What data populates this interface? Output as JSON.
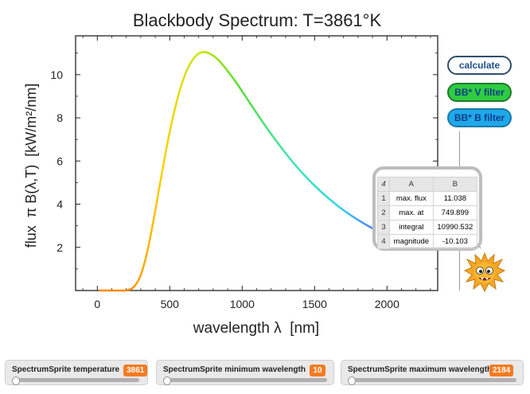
{
  "chart_data": {
    "type": "line",
    "title": "Blackbody Spectrum: T=3861°K",
    "xlabel": "wavelength λ  [nm]",
    "ylabel": "flux  π B(λ,T)  [kW/m²/nm]",
    "xlim": [
      -150,
      2350
    ],
    "ylim": [
      0,
      11.8
    ],
    "x_ticks": [
      0,
      500,
      1000,
      1500,
      2000
    ],
    "y_ticks": [
      2,
      4,
      6,
      8,
      10
    ],
    "grid": false,
    "legend": "none",
    "series": [
      {
        "x": [
          10,
          150,
          200,
          250,
          300,
          350,
          400,
          450,
          500,
          550,
          600,
          650,
          700,
          750,
          800,
          850,
          900,
          950,
          1000,
          1050,
          1100,
          1150,
          1200,
          1300,
          1400,
          1500,
          1600,
          1700,
          1800,
          1900,
          2000,
          2100,
          2184
        ],
        "y": [
          0.0,
          0.0,
          0.01,
          0.15,
          0.72,
          1.95,
          3.7,
          5.6,
          7.35,
          8.8,
          9.9,
          10.6,
          10.98,
          11.04,
          10.88,
          10.58,
          10.17,
          9.72,
          9.23,
          8.72,
          8.22,
          7.73,
          7.25,
          6.36,
          5.56,
          4.86,
          4.25,
          3.72,
          3.27,
          2.88,
          2.55,
          2.26,
          2.05
        ]
      }
    ]
  },
  "buttons": {
    "calculate": "calculate",
    "v_filter": "BB* V filter",
    "b_filter": "BB* B filter"
  },
  "table": {
    "corner": "4",
    "col_a": "A",
    "col_b": "B",
    "rows": [
      {
        "n": "1",
        "a": "max. flux",
        "b": "11.038"
      },
      {
        "n": "2",
        "a": "max. at",
        "b": "749.899"
      },
      {
        "n": "3",
        "a": "integral",
        "b": "10990.532"
      },
      {
        "n": "4",
        "a": "magnitude",
        "b": "-10.103"
      }
    ]
  },
  "watchers": [
    {
      "label": "SpectrumSprite temperature",
      "value": "3861"
    },
    {
      "label": "SpectrumSprite minimum wavelength",
      "value": "10"
    },
    {
      "label": "SpectrumSprite maximum wavelength",
      "value": "2184"
    }
  ],
  "colors": {
    "v_filter": "#2ecc40",
    "b_filter": "#1fa8ea",
    "watcher_value": "#f47b20"
  },
  "icons": {
    "sprite": "orange-fuzzy-creature-icon"
  }
}
